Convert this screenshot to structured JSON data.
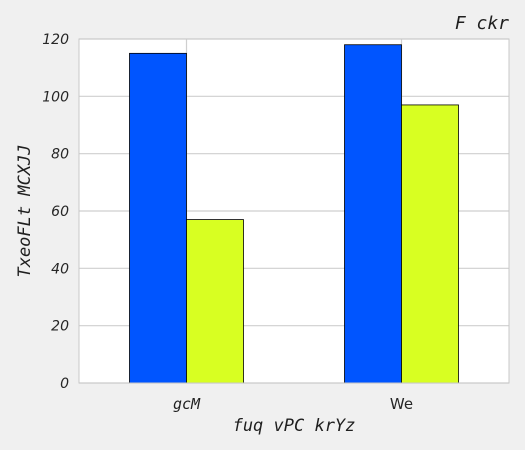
{
  "chart_data": {
    "type": "bar",
    "title": "F ckr",
    "xlabel": "fuq vPC krYz",
    "ylabel": "TxeoFLt MCXJJ",
    "categories": [
      "gcM",
      "We"
    ],
    "series": [
      {
        "values": [
          115,
          118
        ],
        "color": "#0055ff"
      },
      {
        "values": [
          57,
          97
        ],
        "color": "#d8ff22"
      }
    ],
    "ylim": [
      0,
      120
    ],
    "yticks": [
      "0",
      "20",
      "40",
      "60",
      "80",
      "100",
      "120"
    ],
    "grid": true,
    "legend": "none"
  }
}
